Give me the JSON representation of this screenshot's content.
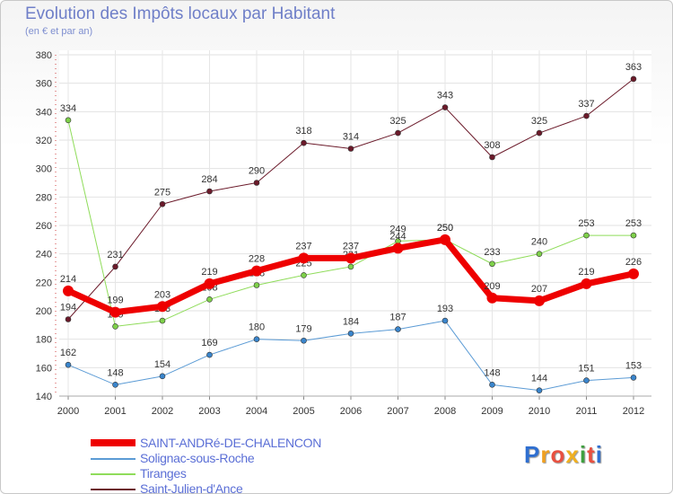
{
  "title": "Evolution des Impôts locaux par Habitant",
  "subtitle": "(en € et par an)",
  "logo": {
    "letters": [
      "P",
      "r",
      "o",
      "x",
      "i",
      "t",
      "i"
    ],
    "colors": [
      "#2f6fd0",
      "#f0a020",
      "#e85040",
      "#f0b020",
      "#40a040",
      "#e85040",
      "#2f6fd0"
    ]
  },
  "chart_data": {
    "type": "line",
    "title": "Evolution des Impôts locaux par Habitant",
    "subtitle": "(en € et par an)",
    "xlabel": "",
    "ylabel": "",
    "ylim": [
      140,
      380
    ],
    "yticks": [
      140,
      160,
      180,
      200,
      220,
      240,
      260,
      280,
      300,
      320,
      340,
      360,
      380
    ],
    "categories": [
      "2000",
      "2001",
      "2002",
      "2003",
      "2004",
      "2005",
      "2006",
      "2007",
      "2008",
      "2009",
      "2010",
      "2011",
      "2012"
    ],
    "grid": true,
    "legend_position": "bottom-left",
    "series": [
      {
        "name": "Saint-Julien-d'Ance",
        "color": "#6b1a2a",
        "marker": "#6b1a2a",
        "width": 1,
        "values": [
          194,
          231,
          275,
          284,
          290,
          318,
          314,
          325,
          343,
          308,
          325,
          337,
          363
        ]
      },
      {
        "name": "Tiranges",
        "color": "#8fdc5a",
        "marker": "#7ed04a",
        "width": 1,
        "values": [
          334,
          189,
          193,
          208,
          218,
          225,
          231,
          249,
          250,
          233,
          240,
          253,
          253
        ]
      },
      {
        "name": "Solignac-sous-Roche",
        "color": "#5b9bd5",
        "marker": "#3a85cc",
        "width": 1,
        "values": [
          162,
          148,
          154,
          169,
          180,
          179,
          184,
          187,
          193,
          148,
          144,
          151,
          153
        ]
      },
      {
        "name": "SAINT-ANDRé-DE-CHALENCON",
        "color": "#ee0000",
        "marker": "#ee0000",
        "width": 7,
        "values": [
          214,
          199,
          203,
          219,
          228,
          237,
          237,
          244,
          250,
          209,
          207,
          219,
          226
        ]
      }
    ],
    "legend_order": [
      "SAINT-ANDRé-DE-CHALENCON",
      "Solignac-sous-Roche",
      "Tiranges",
      "Saint-Julien-d'Ance"
    ]
  }
}
